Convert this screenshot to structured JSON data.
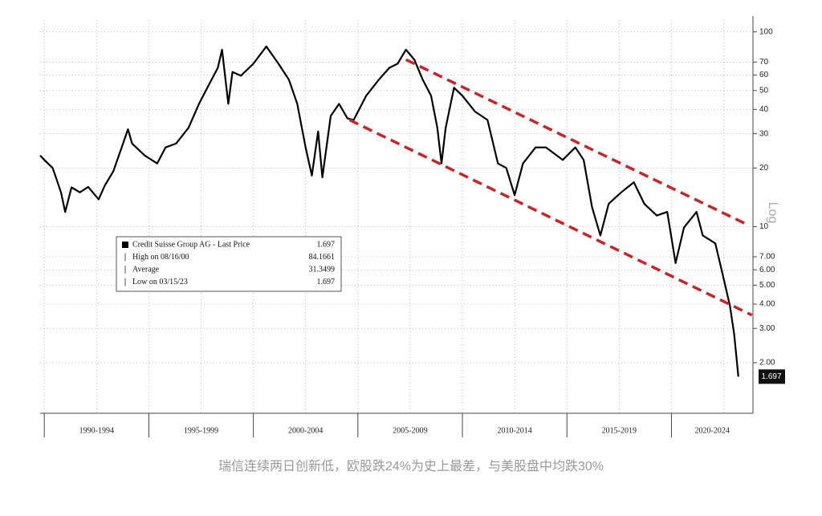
{
  "chart_data": {
    "type": "line",
    "log_scale": true,
    "grid": true,
    "y_axis_label": "Log",
    "caption": "瑞信连续两日创新低，欧股跌24%为史上最差，与美股盘中均跌30%",
    "xlim": [
      1989.8,
      2023.9
    ],
    "ylim": [
      1.1,
      115
    ],
    "yticks": [
      100,
      70,
      60,
      50,
      40,
      30,
      20,
      10,
      {
        "value": 7,
        "label": "7.00"
      },
      {
        "value": 6,
        "label": "6.00"
      },
      {
        "value": 5,
        "label": "5.00"
      },
      {
        "value": 4,
        "label": "4.00"
      },
      {
        "value": 3,
        "label": "3.00"
      },
      {
        "value": 2,
        "label": "2.00"
      }
    ],
    "xbands": [
      {
        "label": "1990-1994",
        "from": 1990,
        "to": 1995
      },
      {
        "label": "1995-1999",
        "from": 1995,
        "to": 2000
      },
      {
        "label": "2000-2004",
        "from": 2000,
        "to": 2005
      },
      {
        "label": "2005-2009",
        "from": 2005,
        "to": 2010
      },
      {
        "label": "2010-2014",
        "from": 2010,
        "to": 2015
      },
      {
        "label": "2015-2019",
        "from": 2015,
        "to": 2020
      },
      {
        "label": "2020-2024",
        "from": 2020,
        "to": 2025
      }
    ],
    "series": [
      {
        "name": "Credit Suisse Group AG - Last Price",
        "color": "#000000",
        "x": [
          1989.8,
          1990.0,
          1990.4,
          1990.8,
          1991.0,
          1991.3,
          1991.7,
          1992.1,
          1992.6,
          1992.9,
          1993.3,
          1993.7,
          1994.0,
          1994.2,
          1994.8,
          1995.4,
          1995.8,
          1996.3,
          1996.9,
          1997.4,
          1997.8,
          1998.3,
          1998.5,
          1998.8,
          1999.0,
          1999.4,
          2000.0,
          2000.62,
          2001.2,
          2001.7,
          2002.1,
          2002.5,
          2002.8,
          2003.1,
          2003.3,
          2003.7,
          2004.1,
          2004.5,
          2004.8,
          2005.4,
          2006.0,
          2006.5,
          2006.9,
          2007.3,
          2007.7,
          2008.1,
          2008.5,
          2008.8,
          2009.0,
          2009.2,
          2009.6,
          2010.0,
          2010.6,
          2011.2,
          2011.7,
          2012.1,
          2012.5,
          2012.9,
          2013.5,
          2014.0,
          2014.8,
          2015.4,
          2015.8,
          2016.2,
          2016.6,
          2017.0,
          2017.6,
          2018.2,
          2018.7,
          2019.3,
          2019.8,
          2020.2,
          2020.6,
          2021.2,
          2021.5,
          2022.1,
          2022.5,
          2022.8,
          2023.0,
          2023.2
        ],
        "values": [
          23.2,
          22,
          20,
          15,
          11.9,
          15.9,
          15,
          16,
          13.8,
          16.3,
          19.2,
          25.5,
          31.6,
          26.7,
          23.2,
          21.1,
          25.5,
          26.7,
          32.2,
          42.7,
          51.7,
          65.3,
          81,
          42.7,
          62.3,
          59.5,
          68.6,
          84.1661,
          68.6,
          56.8,
          42.7,
          25.5,
          18.3,
          30.8,
          17.9,
          37,
          42.7,
          36,
          35.3,
          47,
          56.8,
          65.3,
          68.6,
          81,
          72,
          56.8,
          47,
          32.2,
          21.1,
          32.2,
          51.7,
          47,
          39,
          35.3,
          21.1,
          20,
          14.5,
          21.1,
          25.5,
          25.5,
          22,
          25.5,
          22,
          12.6,
          9,
          13.1,
          15,
          16.9,
          13.1,
          11.4,
          11.9,
          6.5,
          9.9,
          11.9,
          9,
          8.2,
          5.4,
          3.9,
          2.8,
          1.697
        ]
      }
    ],
    "trend_lines": [
      {
        "color": "#c8242b",
        "x": [
          2007.3,
          2023.5
        ],
        "values": [
          72,
          10.4
        ]
      },
      {
        "color": "#c8242b",
        "x": [
          2004.6,
          2023.85
        ],
        "values": [
          35.3,
          3.51
        ]
      }
    ],
    "legend_rows": [
      {
        "label": "Credit Suisse Group AG - Last Price",
        "value": "1.697"
      },
      {
        "label": "High on 08/16/00",
        "value": "84.1661"
      },
      {
        "label": "Average",
        "value": "31.3499"
      },
      {
        "label": "Low on 03/15/23",
        "value": "1.697"
      }
    ]
  }
}
